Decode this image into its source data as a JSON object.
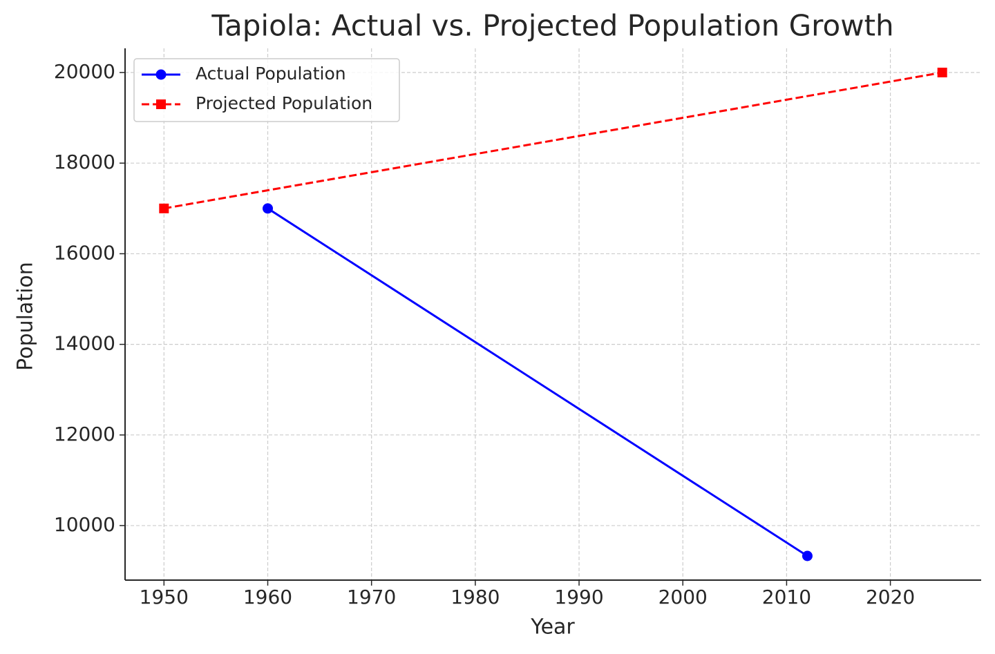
{
  "chart_data": {
    "type": "line",
    "title": "Tapiola: Actual vs. Projected Population Growth",
    "x_label": "Year",
    "y_label": "Population",
    "series": [
      {
        "name": "Actual Population",
        "color": "#0000ff",
        "marker": "circle",
        "dash": "solid",
        "x": [
          1960,
          2012
        ],
        "values": [
          17000,
          9330
        ]
      },
      {
        "name": "Projected Population",
        "color": "#ff0000",
        "marker": "square",
        "dash": "dashed",
        "x": [
          1950,
          2025
        ],
        "values": [
          17000,
          20000
        ]
      }
    ],
    "xlim": [
      1946.25,
      2028.75
    ],
    "xticks": [
      1950,
      1960,
      1970,
      1980,
      1990,
      2000,
      2010,
      2020
    ],
    "ylim": [
      8796.5,
      20533.5
    ],
    "yticks": [
      10000,
      12000,
      14000,
      16000,
      18000,
      20000
    ],
    "grid": true,
    "legend": "upper left"
  }
}
